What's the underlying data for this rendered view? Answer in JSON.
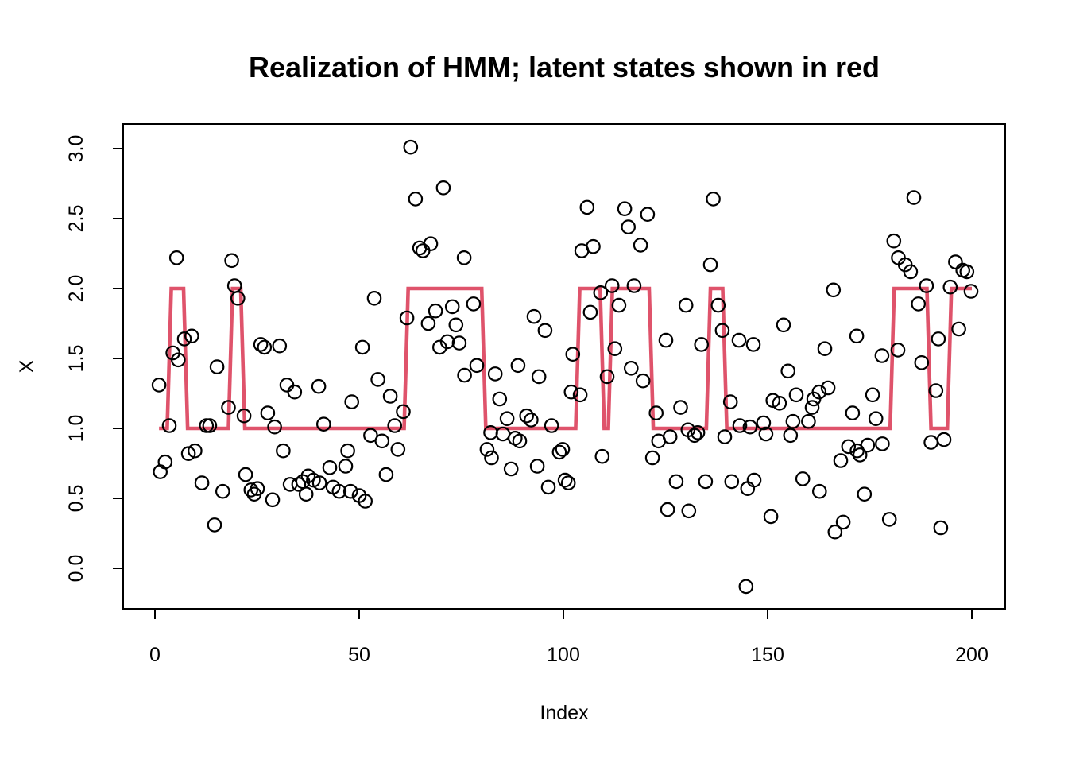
{
  "title": "Realization of HMM; latent states shown in red",
  "x_axis": {
    "label": "Index",
    "tick_values": [
      0,
      50,
      100,
      150,
      200
    ]
  },
  "y_axis": {
    "label": "X",
    "tick_values": [
      0.0,
      0.5,
      1.0,
      1.5,
      2.0,
      2.5,
      3.0
    ],
    "tick_labels": [
      "0.0",
      "0.5",
      "1.0",
      "1.5",
      "2.0",
      "2.5",
      "3.0"
    ]
  },
  "colors": {
    "points": "#000000",
    "latent_line": "#DF536B",
    "axis": "#000000",
    "background": "#ffffff"
  },
  "chart_data": {
    "type": "scatter",
    "title": "Realization of HMM; latent states shown in red",
    "xlabel": "Index",
    "ylabel": "X",
    "xlim": [
      -7,
      208
    ],
    "ylim": [
      -0.3,
      3.18
    ],
    "grid": false,
    "legend": "none",
    "series": [
      {
        "name": "observations",
        "type": "scatter",
        "marker": "open-circle",
        "points": [
          [
            1.0,
            1.31
          ],
          [
            1.3,
            0.69
          ],
          [
            2.5,
            0.76
          ],
          [
            3.5,
            1.02
          ],
          [
            4.4,
            1.54
          ],
          [
            5.3,
            2.22
          ],
          [
            5.7,
            1.49
          ],
          [
            7.2,
            1.64
          ],
          [
            8.2,
            0.82
          ],
          [
            9.0,
            1.66
          ],
          [
            9.8,
            0.84
          ],
          [
            11.5,
            0.61
          ],
          [
            12.6,
            1.02
          ],
          [
            13.4,
            1.02
          ],
          [
            14.6,
            0.31
          ],
          [
            15.2,
            1.44
          ],
          [
            16.6,
            0.55
          ],
          [
            18.0,
            1.15
          ],
          [
            18.8,
            2.2
          ],
          [
            19.5,
            2.02
          ],
          [
            20.3,
            1.93
          ],
          [
            21.8,
            1.09
          ],
          [
            22.2,
            0.67
          ],
          [
            23.5,
            0.56
          ],
          [
            24.3,
            0.53
          ],
          [
            25.1,
            0.57
          ],
          [
            25.9,
            1.6
          ],
          [
            26.8,
            1.58
          ],
          [
            27.6,
            1.11
          ],
          [
            28.8,
            0.49
          ],
          [
            29.3,
            1.01
          ],
          [
            30.5,
            1.59
          ],
          [
            31.4,
            0.84
          ],
          [
            32.3,
            1.31
          ],
          [
            33.1,
            0.6
          ],
          [
            34.2,
            1.26
          ],
          [
            35.2,
            0.6
          ],
          [
            36.2,
            0.62
          ],
          [
            37.0,
            0.53
          ],
          [
            37.5,
            0.66
          ],
          [
            38.8,
            0.63
          ],
          [
            40.1,
            1.3
          ],
          [
            40.3,
            0.61
          ],
          [
            41.3,
            1.03
          ],
          [
            42.8,
            0.72
          ],
          [
            43.6,
            0.58
          ],
          [
            45.1,
            0.55
          ],
          [
            46.7,
            0.73
          ],
          [
            47.2,
            0.84
          ],
          [
            47.9,
            0.55
          ],
          [
            48.2,
            1.19
          ],
          [
            50.0,
            0.52
          ],
          [
            50.8,
            1.58
          ],
          [
            51.5,
            0.48
          ],
          [
            52.8,
            0.95
          ],
          [
            53.7,
            1.93
          ],
          [
            54.6,
            1.35
          ],
          [
            55.6,
            0.91
          ],
          [
            56.6,
            0.67
          ],
          [
            57.6,
            1.23
          ],
          [
            58.7,
            1.02
          ],
          [
            59.5,
            0.85
          ],
          [
            60.8,
            1.12
          ],
          [
            61.7,
            1.79
          ],
          [
            62.6,
            3.01
          ],
          [
            63.8,
            2.64
          ],
          [
            64.8,
            2.29
          ],
          [
            65.6,
            2.27
          ],
          [
            66.9,
            1.75
          ],
          [
            67.5,
            2.32
          ],
          [
            68.7,
            1.84
          ],
          [
            69.7,
            1.58
          ],
          [
            70.6,
            2.72
          ],
          [
            71.6,
            1.62
          ],
          [
            72.8,
            1.87
          ],
          [
            73.7,
            1.74
          ],
          [
            74.5,
            1.61
          ],
          [
            75.7,
            2.22
          ],
          [
            75.8,
            1.38
          ],
          [
            78.0,
            1.89
          ],
          [
            78.8,
            1.45
          ],
          [
            81.3,
            0.85
          ],
          [
            82.2,
            0.97
          ],
          [
            82.4,
            0.79
          ],
          [
            83.3,
            1.39
          ],
          [
            84.4,
            1.21
          ],
          [
            85.2,
            0.96
          ],
          [
            86.2,
            1.07
          ],
          [
            87.2,
            0.71
          ],
          [
            88.2,
            0.93
          ],
          [
            88.9,
            1.45
          ],
          [
            89.3,
            0.91
          ],
          [
            91.0,
            1.09
          ],
          [
            92.1,
            1.06
          ],
          [
            92.8,
            1.8
          ],
          [
            93.6,
            0.73
          ],
          [
            94.0,
            1.37
          ],
          [
            95.5,
            1.7
          ],
          [
            96.3,
            0.58
          ],
          [
            97.1,
            1.02
          ],
          [
            99.0,
            0.83
          ],
          [
            99.8,
            0.85
          ],
          [
            100.4,
            0.63
          ],
          [
            101.2,
            0.61
          ],
          [
            101.9,
            1.26
          ],
          [
            102.3,
            1.53
          ],
          [
            104.1,
            1.24
          ],
          [
            104.5,
            2.27
          ],
          [
            105.8,
            2.58
          ],
          [
            106.6,
            1.83
          ],
          [
            107.3,
            2.3
          ],
          [
            109.1,
            1.97
          ],
          [
            109.5,
            0.8
          ],
          [
            110.7,
            1.37
          ],
          [
            111.9,
            2.02
          ],
          [
            112.6,
            1.57
          ],
          [
            113.6,
            1.88
          ],
          [
            115.0,
            2.57
          ],
          [
            115.9,
            2.44
          ],
          [
            116.6,
            1.43
          ],
          [
            117.3,
            2.02
          ],
          [
            118.9,
            2.31
          ],
          [
            119.5,
            1.34
          ],
          [
            120.6,
            2.53
          ],
          [
            121.8,
            0.79
          ],
          [
            122.7,
            1.11
          ],
          [
            123.3,
            0.91
          ],
          [
            125.1,
            1.63
          ],
          [
            125.5,
            0.42
          ],
          [
            126.1,
            0.94
          ],
          [
            127.6,
            0.62
          ],
          [
            128.7,
            1.15
          ],
          [
            130.0,
            1.88
          ],
          [
            130.5,
            0.99
          ],
          [
            130.7,
            0.41
          ],
          [
            132.1,
            0.95
          ],
          [
            132.9,
            0.97
          ],
          [
            133.8,
            1.6
          ],
          [
            134.8,
            0.62
          ],
          [
            136.0,
            2.17
          ],
          [
            136.7,
            2.64
          ],
          [
            137.9,
            1.88
          ],
          [
            138.9,
            1.7
          ],
          [
            139.5,
            0.94
          ],
          [
            140.9,
            1.19
          ],
          [
            141.2,
            0.62
          ],
          [
            143.0,
            1.63
          ],
          [
            143.2,
            1.02
          ],
          [
            144.7,
            -0.13
          ],
          [
            145.1,
            0.57
          ],
          [
            145.7,
            1.01
          ],
          [
            146.5,
            1.6
          ],
          [
            146.7,
            0.63
          ],
          [
            149.0,
            1.04
          ],
          [
            149.6,
            0.96
          ],
          [
            150.8,
            0.37
          ],
          [
            151.3,
            1.2
          ],
          [
            152.9,
            1.18
          ],
          [
            153.9,
            1.74
          ],
          [
            155.0,
            1.41
          ],
          [
            155.6,
            0.95
          ],
          [
            156.2,
            1.05
          ],
          [
            157.0,
            1.24
          ],
          [
            158.6,
            0.64
          ],
          [
            160.0,
            1.05
          ],
          [
            160.9,
            1.15
          ],
          [
            161.3,
            1.21
          ],
          [
            162.6,
            1.26
          ],
          [
            162.7,
            0.55
          ],
          [
            164.0,
            1.57
          ],
          [
            164.8,
            1.29
          ],
          [
            166.1,
            1.99
          ],
          [
            166.5,
            0.26
          ],
          [
            167.9,
            0.77
          ],
          [
            168.5,
            0.33
          ],
          [
            169.8,
            0.87
          ],
          [
            170.8,
            1.11
          ],
          [
            171.8,
            1.66
          ],
          [
            171.9,
            0.84
          ],
          [
            172.6,
            0.81
          ],
          [
            173.7,
            0.53
          ],
          [
            174.5,
            0.88
          ],
          [
            175.7,
            1.24
          ],
          [
            176.5,
            1.07
          ],
          [
            178.0,
            1.52
          ],
          [
            178.1,
            0.89
          ],
          [
            179.8,
            0.35
          ],
          [
            180.9,
            2.34
          ],
          [
            181.9,
            1.56
          ],
          [
            182.0,
            2.22
          ],
          [
            183.7,
            2.17
          ],
          [
            185.0,
            2.12
          ],
          [
            185.8,
            2.65
          ],
          [
            186.9,
            1.89
          ],
          [
            187.7,
            1.47
          ],
          [
            188.9,
            2.02
          ],
          [
            190.0,
            0.9
          ],
          [
            191.2,
            1.27
          ],
          [
            191.8,
            1.64
          ],
          [
            192.4,
            0.29
          ],
          [
            193.2,
            0.92
          ],
          [
            194.7,
            2.01
          ],
          [
            196.0,
            2.19
          ],
          [
            196.8,
            1.71
          ],
          [
            197.8,
            2.13
          ],
          [
            198.8,
            2.12
          ],
          [
            199.8,
            1.98
          ]
        ]
      },
      {
        "name": "latent states (red step line)",
        "type": "step-line",
        "color": "#DF536B",
        "state_runs": [
          [
            1,
            3,
            1
          ],
          [
            4,
            7,
            2
          ],
          [
            8,
            18,
            1
          ],
          [
            19,
            21,
            2
          ],
          [
            22,
            61,
            1
          ],
          [
            62,
            80,
            2
          ],
          [
            81,
            103,
            1
          ],
          [
            104,
            109,
            2
          ],
          [
            110,
            111,
            1
          ],
          [
            112,
            121,
            2
          ],
          [
            122,
            135,
            1
          ],
          [
            136,
            139,
            2
          ],
          [
            140,
            180,
            1
          ],
          [
            181,
            189,
            2
          ],
          [
            190,
            194,
            1
          ],
          [
            195,
            200,
            2
          ]
        ]
      }
    ]
  }
}
